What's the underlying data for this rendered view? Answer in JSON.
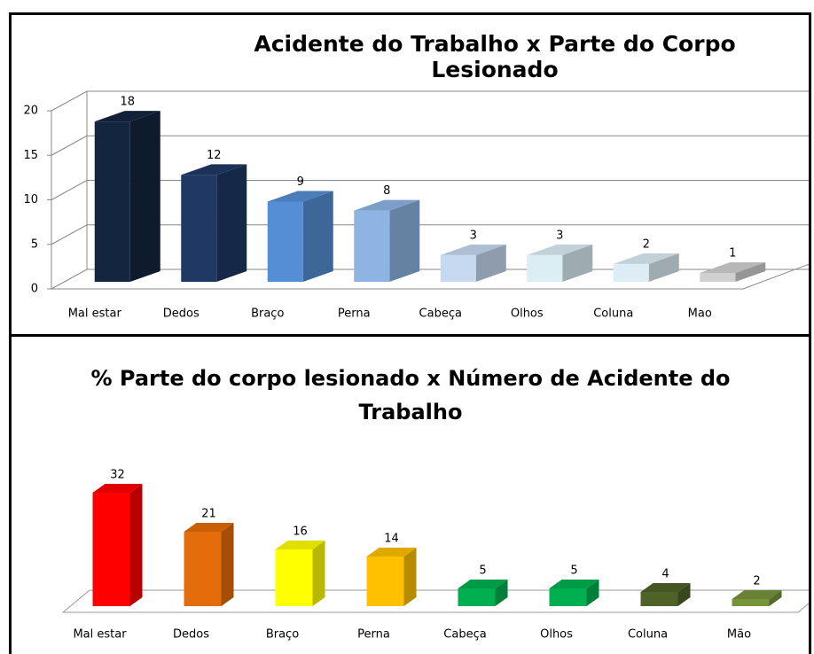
{
  "chart_data": [
    {
      "type": "bar3d",
      "title": "Acidente do Trabalho x Parte do Corpo Lesionado",
      "categories": [
        "Mal estar",
        "Dedos",
        "Braço",
        "Perna",
        "Cabeça",
        "Olhos",
        "Coluna",
        "Mao"
      ],
      "values": [
        18,
        12,
        9,
        8,
        3,
        3,
        2,
        1
      ],
      "colors": [
        "#14263f",
        "#1f3864",
        "#558ed5",
        "#8db4e2",
        "#c6d9f1",
        "#dbeef4",
        "#dcedf5",
        "#d0d0d0"
      ],
      "ylim": [
        0,
        20
      ],
      "yticks": [
        0,
        5,
        10,
        15,
        20
      ],
      "grid": true
    },
    {
      "type": "bar3d",
      "title": "% Parte do corpo lesionado x Número de Acidente do Trabalho",
      "categories": [
        "Mal estar",
        "Dedos",
        "Braço",
        "Perna",
        "Cabeça",
        "Olhos",
        "Coluna",
        "Mão"
      ],
      "values": [
        32,
        21,
        16,
        14,
        5,
        5,
        4,
        2
      ],
      "colors": [
        "#ff0000",
        "#e46c0a",
        "#ffff00",
        "#ffc000",
        "#00b050",
        "#00b050",
        "#4f6228",
        "#77933c"
      ],
      "grid": false
    }
  ]
}
